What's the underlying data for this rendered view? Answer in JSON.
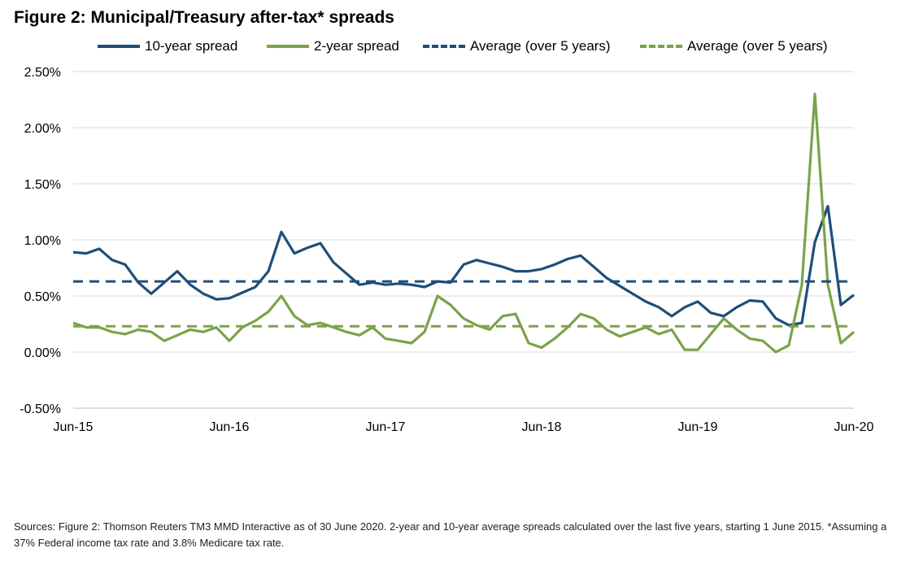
{
  "title": "Figure 2: Municipal/Treasury after-tax* spreads",
  "source_note": "Sources: Figure 2: Thomson Reuters TM3 MMD Interactive as of 30 June 2020. 2-year and 10-year average spreads calculated over the last five years, starting 1 June 2015. *Assuming a 37% Federal income tax rate and 3.8% Medicare tax rate.",
  "legend": [
    {
      "label": "10-year spread",
      "color": "#1f4e79",
      "style": "solid"
    },
    {
      "label": "2-year spread",
      "color": "#7aa34a",
      "style": "solid"
    },
    {
      "label": "Average (over 5 years)",
      "color": "#1f4e79",
      "style": "dashed"
    },
    {
      "label": "Average (over 5 years)",
      "color": "#7aa34a",
      "style": "dashed"
    }
  ],
  "chart_data": {
    "type": "line",
    "title": "Figure 2: Municipal/Treasury after-tax* spreads",
    "xlabel": "",
    "ylabel": "",
    "x_tick_labels": [
      "Jun-15",
      "Jun-16",
      "Jun-17",
      "Jun-18",
      "Jun-19",
      "Jun-20"
    ],
    "y_tick_labels": [
      "2.50%",
      "2.00%",
      "1.50%",
      "1.00%",
      "0.50%",
      "0.00%",
      "-0.50%"
    ],
    "ylim": [
      -0.5,
      2.5
    ],
    "xlim": [
      "2015-06",
      "2020-06"
    ],
    "grid": "horizontal",
    "legend_position": "top",
    "series": [
      {
        "name": "10-year spread",
        "color": "#1f4e79",
        "style": "solid",
        "x": [
          "2015-06",
          "2015-07",
          "2015-08",
          "2015-09",
          "2015-10",
          "2015-11",
          "2015-12",
          "2016-01",
          "2016-02",
          "2016-03",
          "2016-04",
          "2016-05",
          "2016-06",
          "2016-07",
          "2016-08",
          "2016-09",
          "2016-10",
          "2016-11",
          "2016-12",
          "2017-01",
          "2017-02",
          "2017-03",
          "2017-04",
          "2017-05",
          "2017-06",
          "2017-07",
          "2017-08",
          "2017-09",
          "2017-10",
          "2017-11",
          "2017-12",
          "2018-01",
          "2018-02",
          "2018-03",
          "2018-04",
          "2018-05",
          "2018-06",
          "2018-07",
          "2018-08",
          "2018-09",
          "2018-10",
          "2018-11",
          "2018-12",
          "2019-01",
          "2019-02",
          "2019-03",
          "2019-04",
          "2019-05",
          "2019-06",
          "2019-07",
          "2019-08",
          "2019-09",
          "2019-10",
          "2019-11",
          "2019-12",
          "2020-01",
          "2020-02",
          "2020-03",
          "2020-04",
          "2020-05",
          "2020-06"
        ],
        "values": [
          0.89,
          0.88,
          0.92,
          0.82,
          0.78,
          0.62,
          0.52,
          0.62,
          0.72,
          0.6,
          0.52,
          0.47,
          0.48,
          0.53,
          0.58,
          0.72,
          1.07,
          0.88,
          0.93,
          0.97,
          0.8,
          0.7,
          0.6,
          0.62,
          0.6,
          0.61,
          0.6,
          0.58,
          0.63,
          0.62,
          0.78,
          0.82,
          0.79,
          0.76,
          0.72,
          0.72,
          0.74,
          0.78,
          0.83,
          0.86,
          0.76,
          0.66,
          0.59,
          0.52,
          0.45,
          0.4,
          0.32,
          0.4,
          0.45,
          0.35,
          0.32,
          0.4,
          0.46,
          0.45,
          0.3,
          0.24,
          0.26,
          0.98,
          1.3,
          0.42,
          0.51
        ]
      },
      {
        "name": "2-year spread",
        "color": "#7aa34a",
        "style": "solid",
        "x": [
          "2015-06",
          "2015-07",
          "2015-08",
          "2015-09",
          "2015-10",
          "2015-11",
          "2015-12",
          "2016-01",
          "2016-02",
          "2016-03",
          "2016-04",
          "2016-05",
          "2016-06",
          "2016-07",
          "2016-08",
          "2016-09",
          "2016-10",
          "2016-11",
          "2016-12",
          "2017-01",
          "2017-02",
          "2017-03",
          "2017-04",
          "2017-05",
          "2017-06",
          "2017-07",
          "2017-08",
          "2017-09",
          "2017-10",
          "2017-11",
          "2017-12",
          "2018-01",
          "2018-02",
          "2018-03",
          "2018-04",
          "2018-05",
          "2018-06",
          "2018-07",
          "2018-08",
          "2018-09",
          "2018-10",
          "2018-11",
          "2018-12",
          "2019-01",
          "2019-02",
          "2019-03",
          "2019-04",
          "2019-05",
          "2019-06",
          "2019-07",
          "2019-08",
          "2019-09",
          "2019-10",
          "2019-11",
          "2019-12",
          "2020-01",
          "2020-02",
          "2020-03",
          "2020-04",
          "2020-05",
          "2020-06"
        ],
        "values": [
          0.26,
          0.22,
          0.22,
          0.18,
          0.16,
          0.2,
          0.18,
          0.1,
          0.15,
          0.2,
          0.18,
          0.22,
          0.1,
          0.22,
          0.28,
          0.36,
          0.5,
          0.32,
          0.24,
          0.26,
          0.22,
          0.18,
          0.15,
          0.22,
          0.12,
          0.1,
          0.08,
          0.18,
          0.5,
          0.42,
          0.3,
          0.24,
          0.2,
          0.32,
          0.34,
          0.08,
          0.04,
          0.12,
          0.22,
          0.34,
          0.3,
          0.2,
          0.14,
          0.18,
          0.22,
          0.16,
          0.2,
          0.02,
          0.02,
          0.16,
          0.3,
          0.2,
          0.12,
          0.1,
          0.0,
          0.06,
          0.6,
          2.3,
          0.6,
          0.08,
          0.18
        ]
      },
      {
        "name": "Average (over 5 years)",
        "color": "#1f4e79",
        "style": "dashed",
        "x": [
          "2015-06",
          "2020-06"
        ],
        "values": [
          0.63,
          0.63
        ]
      },
      {
        "name": "Average (over 5 years)",
        "color": "#7aa34a",
        "style": "dashed",
        "x": [
          "2015-06",
          "2020-06"
        ],
        "values": [
          0.23,
          0.23
        ]
      }
    ]
  }
}
